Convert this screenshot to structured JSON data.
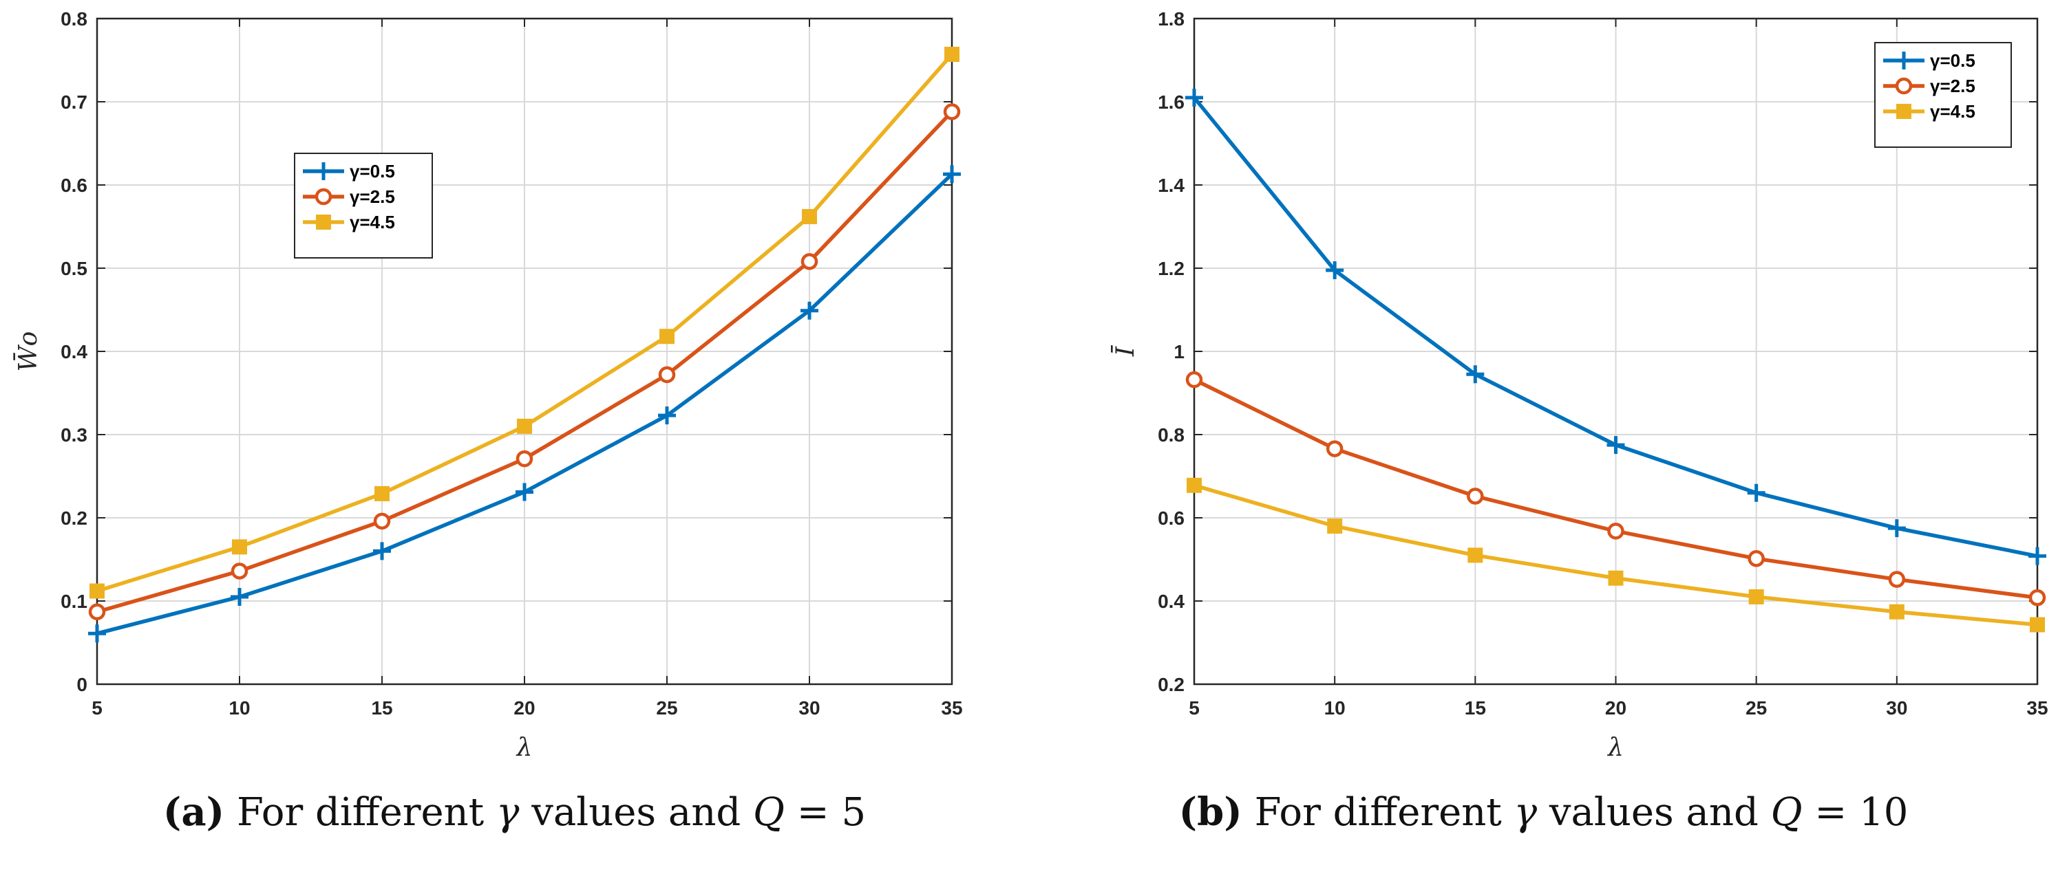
{
  "chart_data": [
    {
      "type": "line",
      "id": "a",
      "xlabel": "λ",
      "ylabel": "W̄o",
      "x": [
        5,
        10,
        15,
        20,
        25,
        30,
        35
      ],
      "xlim": [
        5,
        35
      ],
      "ylim": [
        0,
        0.8
      ],
      "xticks": [
        5,
        10,
        15,
        20,
        25,
        30,
        35
      ],
      "yticks": [
        0,
        0.1,
        0.2,
        0.3,
        0.4,
        0.5,
        0.6,
        0.7,
        0.8
      ],
      "ytick_labels": [
        "0",
        "0.1",
        "0.2",
        "0.3",
        "0.4",
        "0.5",
        "0.6",
        "0.7",
        "0.8"
      ],
      "grid": true,
      "legend_position": "upper-left-center",
      "series": [
        {
          "name": "γ=0.5",
          "color": "#0072BD",
          "marker": "plus",
          "values": [
            0.061,
            0.105,
            0.16,
            0.231,
            0.323,
            0.449,
            0.613
          ]
        },
        {
          "name": "γ=2.5",
          "color": "#D95319",
          "marker": "circle",
          "values": [
            0.087,
            0.136,
            0.196,
            0.271,
            0.372,
            0.508,
            0.688
          ]
        },
        {
          "name": "γ=4.5",
          "color": "#EDB120",
          "marker": "square",
          "values": [
            0.112,
            0.165,
            0.229,
            0.31,
            0.418,
            0.562,
            0.757
          ]
        }
      ],
      "caption": {
        "label": "(a)",
        "text_before": " For different ",
        "gamma": "γ",
        "text_mid": " values and ",
        "q": "Q",
        "text_after": " = 5"
      }
    },
    {
      "type": "line",
      "id": "b",
      "xlabel": "λ",
      "ylabel": "Ī",
      "x": [
        5,
        10,
        15,
        20,
        25,
        30,
        35
      ],
      "xlim": [
        5,
        35
      ],
      "ylim": [
        0.2,
        1.8
      ],
      "xticks": [
        5,
        10,
        15,
        20,
        25,
        30,
        35
      ],
      "yticks": [
        0.2,
        0.4,
        0.6,
        0.8,
        1.0,
        1.2,
        1.4,
        1.6,
        1.8
      ],
      "ytick_labels": [
        "0.2",
        "0.4",
        "0.6",
        "0.8",
        "1",
        "1.2",
        "1.4",
        "1.6",
        "1.8"
      ],
      "grid": true,
      "legend_position": "top-right",
      "series": [
        {
          "name": "γ=0.5",
          "color": "#0072BD",
          "marker": "plus",
          "values": [
            1.61,
            1.195,
            0.945,
            0.775,
            0.66,
            0.575,
            0.508
          ]
        },
        {
          "name": "γ=2.5",
          "color": "#D95319",
          "marker": "circle",
          "values": [
            0.932,
            0.766,
            0.652,
            0.568,
            0.502,
            0.452,
            0.408
          ]
        },
        {
          "name": "γ=4.5",
          "color": "#EDB120",
          "marker": "square",
          "values": [
            0.678,
            0.58,
            0.51,
            0.455,
            0.41,
            0.374,
            0.343
          ]
        }
      ],
      "caption": {
        "label": "(b)",
        "text_before": " For different ",
        "gamma": "γ",
        "text_mid": " values and ",
        "q": "Q",
        "text_after": " = 10"
      }
    }
  ]
}
